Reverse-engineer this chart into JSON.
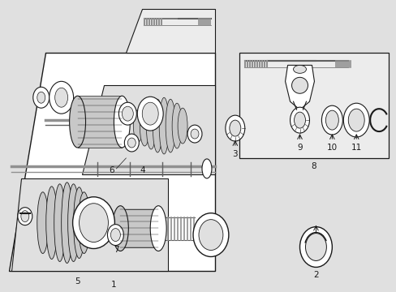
{
  "bg_color": "#e0e0e0",
  "white": "#ffffff",
  "black": "#1a1a1a",
  "light_gray": "#c8c8c8",
  "dark_gray": "#606060",
  "mid_gray": "#909090",
  "box_fill": "#ececec"
}
